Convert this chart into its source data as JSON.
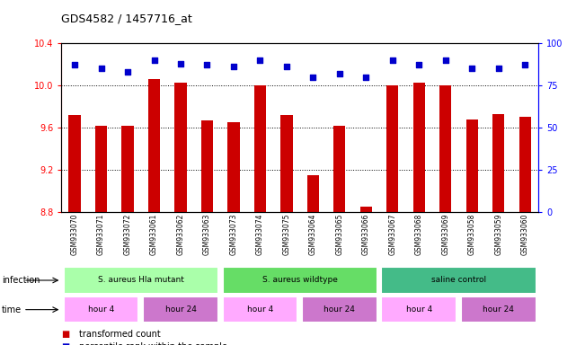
{
  "title": "GDS4582 / 1457716_at",
  "samples": [
    "GSM933070",
    "GSM933071",
    "GSM933072",
    "GSM933061",
    "GSM933062",
    "GSM933063",
    "GSM933073",
    "GSM933074",
    "GSM933075",
    "GSM933064",
    "GSM933065",
    "GSM933066",
    "GSM933067",
    "GSM933068",
    "GSM933069",
    "GSM933058",
    "GSM933059",
    "GSM933060"
  ],
  "bar_values": [
    9.72,
    9.62,
    9.62,
    10.06,
    10.03,
    9.67,
    9.65,
    10.0,
    9.72,
    9.15,
    9.62,
    8.85,
    10.0,
    10.03,
    10.0,
    9.68,
    9.73,
    9.7
  ],
  "percentile_values": [
    87,
    85,
    83,
    90,
    88,
    87,
    86,
    90,
    86,
    80,
    82,
    80,
    90,
    87,
    90,
    85,
    85,
    87
  ],
  "ylim_left": [
    8.8,
    10.4
  ],
  "ylim_right": [
    0,
    100
  ],
  "yticks_left": [
    8.8,
    9.2,
    9.6,
    10.0,
    10.4
  ],
  "yticks_right": [
    0,
    25,
    50,
    75,
    100
  ],
  "bar_color": "#cc0000",
  "dot_color": "#0000cc",
  "infection_groups": [
    {
      "label": "S. aureus Hla mutant",
      "start": 0,
      "end": 6,
      "color": "#aaffaa"
    },
    {
      "label": "S. aureus wildtype",
      "start": 6,
      "end": 12,
      "color": "#66dd66"
    },
    {
      "label": "saline control",
      "start": 12,
      "end": 18,
      "color": "#44bb88"
    }
  ],
  "time_groups": [
    {
      "label": "hour 4",
      "start": 0,
      "end": 3,
      "color": "#ffaaff"
    },
    {
      "label": "hour 24",
      "start": 3,
      "end": 6,
      "color": "#cc77cc"
    },
    {
      "label": "hour 4",
      "start": 6,
      "end": 9,
      "color": "#ffaaff"
    },
    {
      "label": "hour 24",
      "start": 9,
      "end": 12,
      "color": "#cc77cc"
    },
    {
      "label": "hour 4",
      "start": 12,
      "end": 15,
      "color": "#ffaaff"
    },
    {
      "label": "hour 24",
      "start": 15,
      "end": 18,
      "color": "#cc77cc"
    }
  ]
}
